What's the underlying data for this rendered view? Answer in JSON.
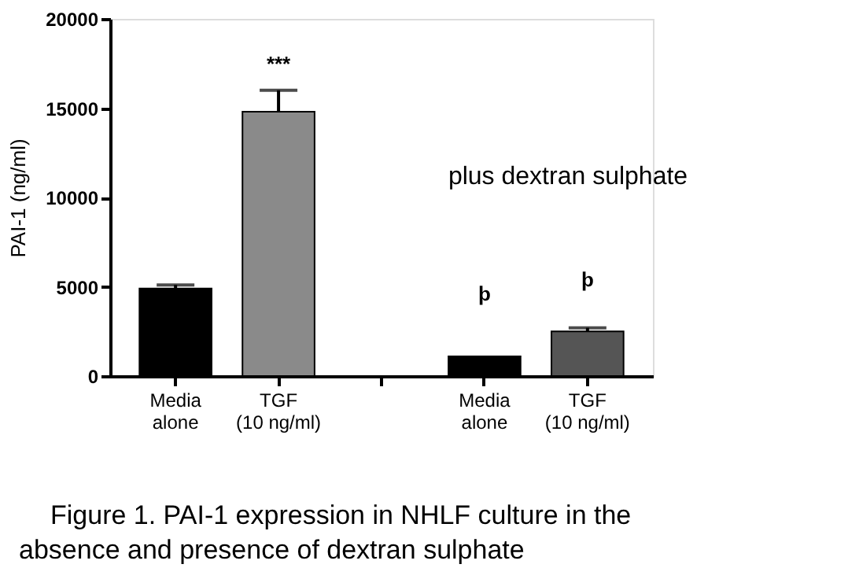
{
  "chart_data": {
    "type": "bar",
    "categories": [
      "Media alone",
      "TGF (10 ng/ml)",
      null,
      "Media alone",
      "TGF (10 ng/ml)"
    ],
    "values": [
      4900,
      14800,
      null,
      1100,
      2500
    ],
    "colors": [
      "#000000",
      "#8a8a8a",
      "#000000",
      "#000000",
      "#555555"
    ],
    "errors": [
      [
        4900,
        5100
      ],
      [
        14800,
        16000
      ],
      null,
      null,
      [
        2500,
        2700
      ]
    ],
    "ylabel": "PAI-1 (ng/ml)",
    "ylim": [
      0,
      20000
    ],
    "yticks": [
      0,
      5000,
      10000,
      15000,
      20000
    ],
    "grid": false,
    "annotations": [
      "***",
      "þ",
      "þ",
      "plus dextran sulphate",
      "Figure 1. PAI-1 expression in NHLF culture in the absence and presence of dextran sulphate"
    ]
  }
}
